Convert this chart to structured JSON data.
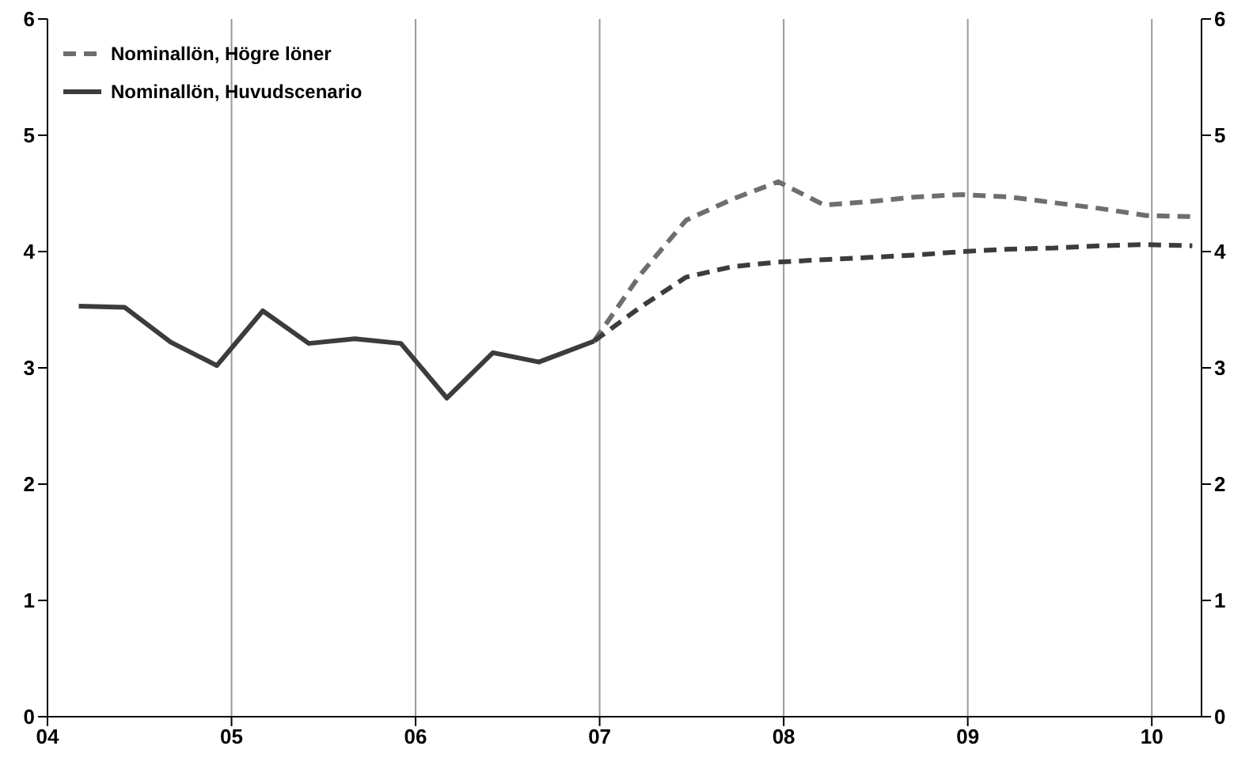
{
  "chart_data": {
    "type": "line",
    "xlim": [
      4,
      10.27
    ],
    "xticks": [
      {
        "value": 4,
        "label": "04"
      },
      {
        "value": 5,
        "label": "05"
      },
      {
        "value": 6,
        "label": "06"
      },
      {
        "value": 7,
        "label": "07"
      },
      {
        "value": 8,
        "label": "08"
      },
      {
        "value": 9,
        "label": "09"
      },
      {
        "value": 10,
        "label": "10"
      }
    ],
    "ylim": [
      0,
      6
    ],
    "yticks": [
      0,
      1,
      2,
      3,
      4,
      5,
      6
    ],
    "y2lim": [
      0,
      6
    ],
    "y2ticks": [
      0,
      1,
      2,
      3,
      4,
      5,
      6
    ],
    "grid": true,
    "legend": "top left",
    "marker": "none",
    "series": [
      {
        "name": "Nominallön, Högre löner",
        "color": "#6e6e6e",
        "line_style": "dashed",
        "x": [
          6.97,
          7.22,
          7.47,
          7.72,
          7.97,
          8.22,
          8.47,
          8.72,
          8.97,
          9.22,
          9.47,
          9.72,
          9.97,
          10.22
        ],
        "values": [
          3.23,
          3.8,
          4.27,
          4.45,
          4.6,
          4.4,
          4.43,
          4.47,
          4.49,
          4.47,
          4.42,
          4.37,
          4.31,
          4.3
        ]
      },
      {
        "name": "Nominallön, Huvudscenario",
        "color": "#3c3c3c",
        "line_style": "solid",
        "x": [
          4.17,
          4.42,
          4.67,
          4.92,
          5.17,
          5.42,
          5.67,
          5.92,
          6.17,
          6.42,
          6.67,
          6.97
        ],
        "values": [
          3.53,
          3.52,
          3.22,
          3.02,
          3.49,
          3.21,
          3.25,
          3.21,
          2.74,
          3.13,
          3.05,
          3.23
        ]
      },
      {
        "color": "#3c3c3c",
        "line_style": "dashed",
        "x": [
          6.97,
          7.22,
          7.47,
          7.72,
          7.97,
          8.22,
          8.47,
          8.72,
          8.97,
          9.22,
          9.47,
          9.72,
          9.97,
          10.22
        ],
        "values": [
          3.23,
          3.52,
          3.78,
          3.87,
          3.91,
          3.93,
          3.95,
          3.97,
          4.0,
          4.02,
          4.03,
          4.05,
          4.06,
          4.05
        ]
      }
    ]
  }
}
